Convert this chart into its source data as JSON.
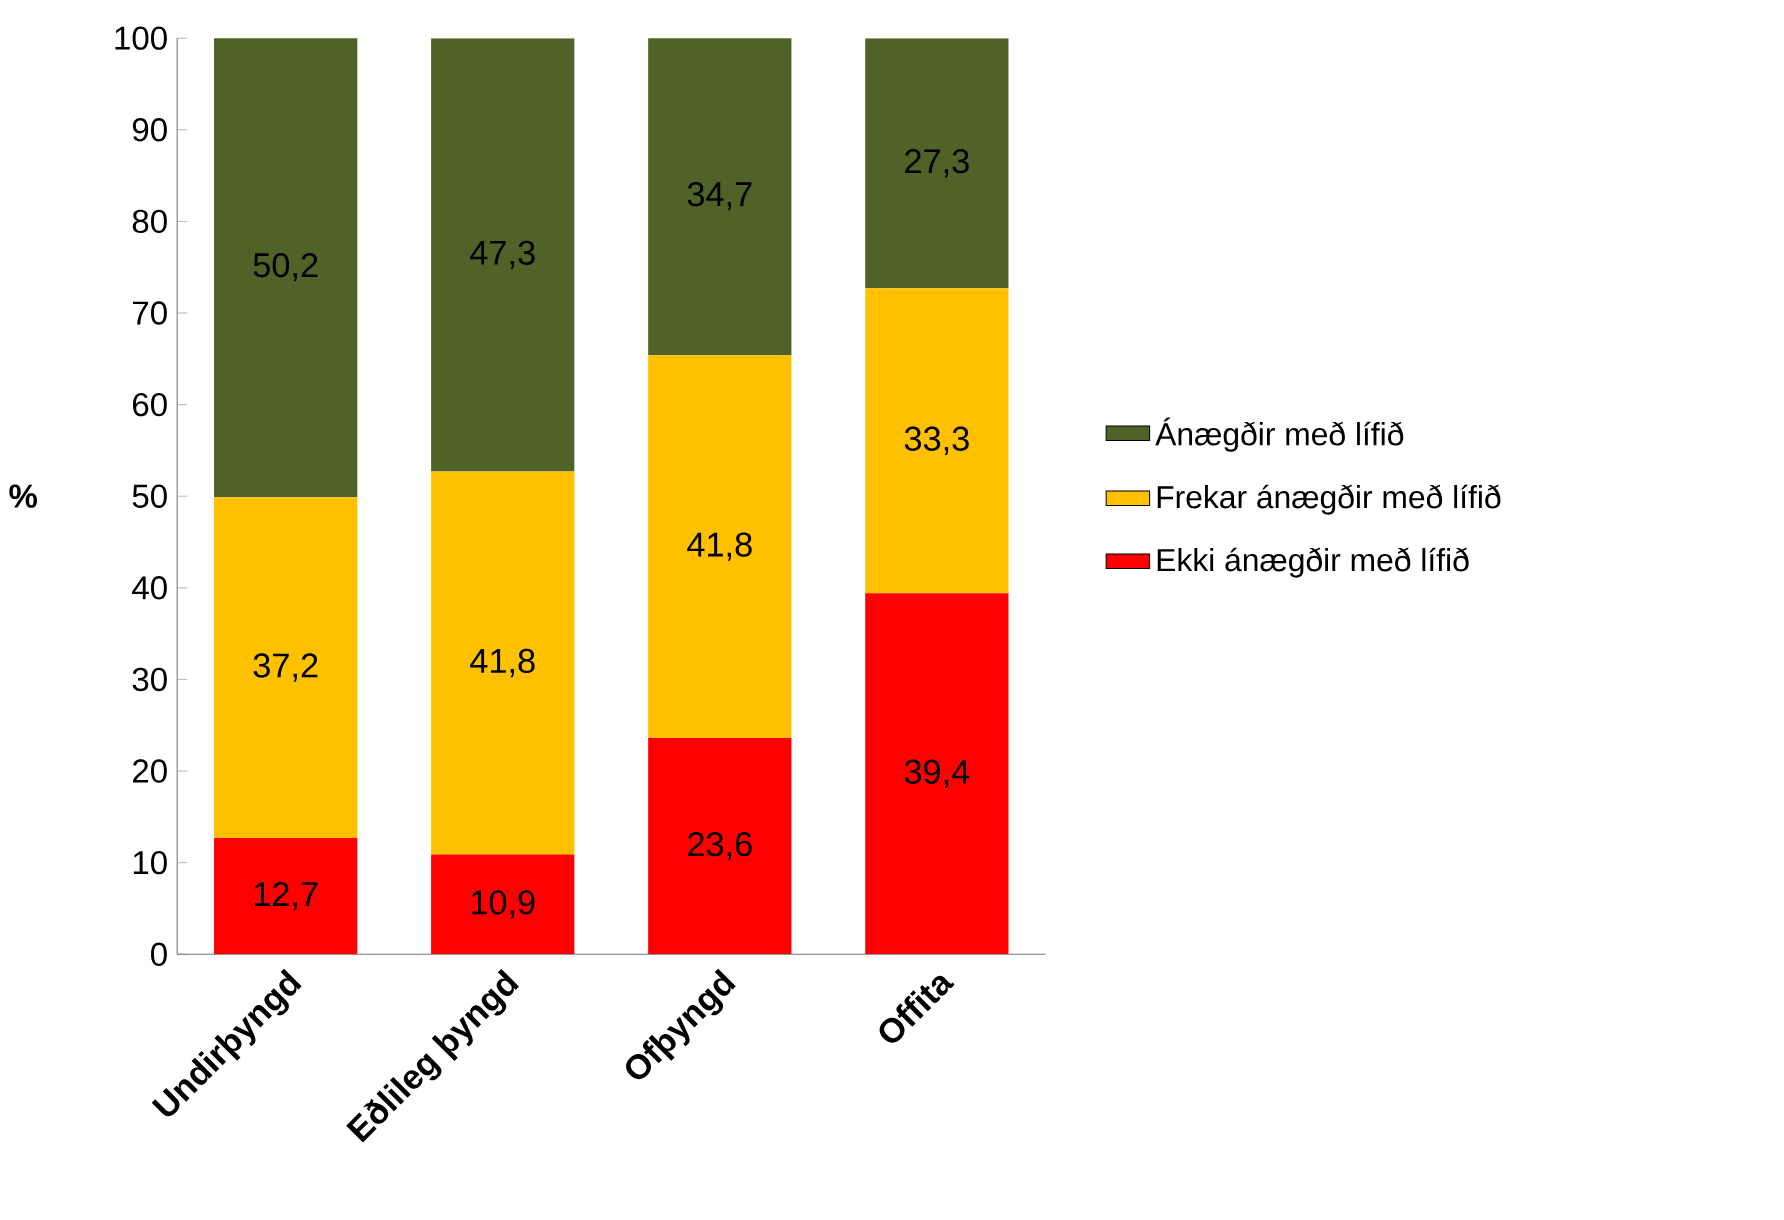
{
  "chart_data": {
    "type": "bar",
    "stacked": true,
    "ylabel": "%",
    "categories": [
      "Undirþyngd",
      "Eðlileg þyngd",
      "Ofþyngd",
      "Offita"
    ],
    "series": [
      {
        "name": "Ekki ánægðir með lífið",
        "color": "#ff0000",
        "values": [
          12.7,
          10.9,
          23.6,
          39.4
        ],
        "value_labels": [
          "12,7",
          "10,9",
          "23,6",
          "39,4"
        ]
      },
      {
        "name": "Frekar ánægðir með lífið",
        "color": "#ffc000",
        "values": [
          37.2,
          41.8,
          41.8,
          33.3
        ],
        "value_labels": [
          "37,2",
          "41,8",
          "41,8",
          "33,3"
        ]
      },
      {
        "name": "Ánægðir með lífið",
        "color": "#4f6228",
        "values": [
          50.2,
          47.3,
          34.7,
          27.3
        ],
        "value_labels": [
          "50,2",
          "47,3",
          "34,7",
          "27,3"
        ]
      }
    ],
    "ylim": [
      0,
      100
    ],
    "yticks": [
      0,
      10,
      20,
      30,
      40,
      50,
      60,
      70,
      80,
      90,
      100
    ],
    "grid": false,
    "legend": "right"
  }
}
